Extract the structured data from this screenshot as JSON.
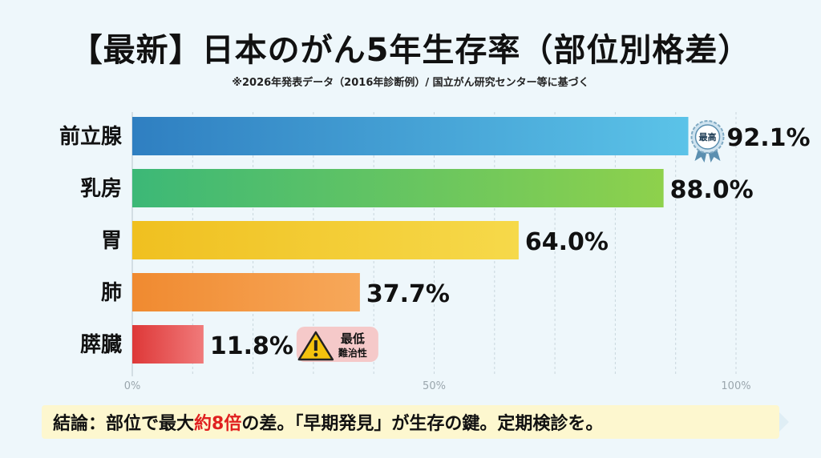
{
  "title": "【最新】日本のがん5年生存率（部位別格差）",
  "subtitle": "※2026年発表データ（2016年診断例）/ 国立がん研究センター等に基づく",
  "chart_data": {
    "type": "bar",
    "orientation": "horizontal",
    "categories": [
      "前立腺",
      "乳房",
      "胃",
      "肺",
      "膵臓"
    ],
    "values": [
      92.1,
      88.0,
      64.0,
      37.7,
      11.8
    ],
    "value_labels": [
      "92.1%",
      "88.0%",
      "64.0%",
      "37.7%",
      "11.8%"
    ],
    "xlim": [
      0,
      100
    ],
    "x_ticks": [
      {
        "value": 0,
        "label": "0%"
      },
      {
        "value": 50,
        "label": "50%"
      },
      {
        "value": 100,
        "label": "100%"
      }
    ],
    "gridlines": [
      10,
      20,
      30,
      40,
      50,
      60,
      70,
      80,
      90,
      100
    ],
    "bar_colors": [
      [
        "#2f7fc1",
        "#5bc3e8"
      ],
      [
        "#3cb877",
        "#8ed14c"
      ],
      [
        "#f0c020",
        "#f6d94a"
      ],
      [
        "#f08a30",
        "#f7a85a"
      ],
      [
        "#de3838",
        "#f07a7a"
      ]
    ],
    "annotations": [
      {
        "category": "前立腺",
        "kind": "badge",
        "text": "最高"
      },
      {
        "category": "膵臓",
        "kind": "warning",
        "line1": "最低",
        "line2": "難治性"
      }
    ]
  },
  "conclusion": {
    "prefix": "結論：部位で最大",
    "highlight": "約8倍",
    "suffix": "の差。「早期発見」が生存の鍵。定期検診を。"
  }
}
